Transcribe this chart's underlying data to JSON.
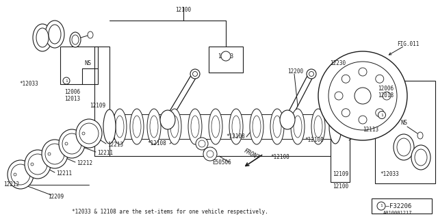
{
  "bg_color": "#ffffff",
  "footer_note": "*12033 & 12108 are the set-items for one vehicle respectively.",
  "doc_id": "A010001217",
  "fig_ref": "F32206",
  "line_color": "#1a1a1a",
  "text_color": "#1a1a1a"
}
